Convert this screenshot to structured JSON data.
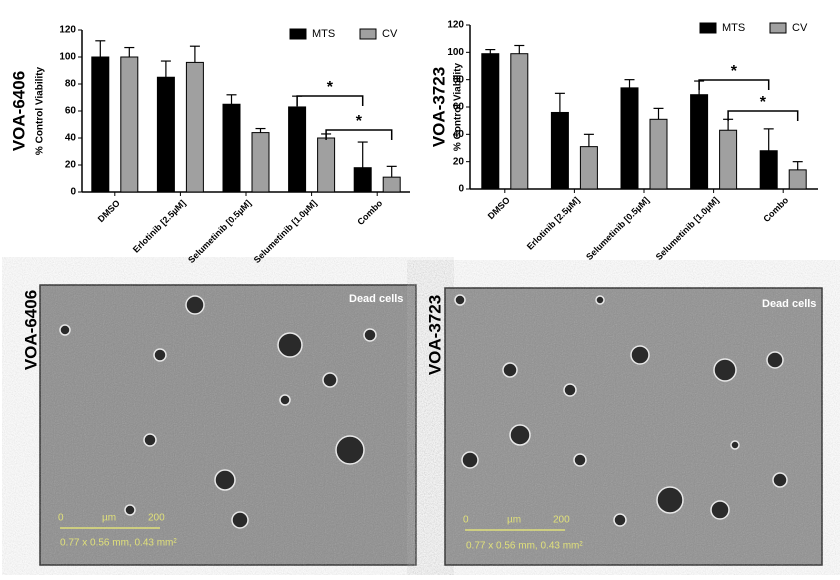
{
  "chart_data": [
    {
      "type": "bar",
      "title": "VOA-6406",
      "y_label": "% Control Viability",
      "categories": [
        "DMSO",
        "Erlotinib [2.5µM]",
        "Selumetinib [0.5µM]",
        "Selumetinib [1.0µM]",
        "Combo"
      ],
      "series": [
        {
          "name": "MTS",
          "color": "#000000",
          "values": [
            100,
            85,
            65,
            63,
            18
          ],
          "errors": [
            12,
            12,
            7,
            8,
            19
          ]
        },
        {
          "name": "CV",
          "color": "#a0a0a0",
          "values": [
            100,
            96,
            44,
            40,
            11
          ],
          "errors": [
            7,
            12,
            3,
            3,
            8
          ]
        }
      ],
      "ylim": [
        0,
        120
      ],
      "yticks": [
        0,
        20,
        40,
        60,
        80,
        100,
        120
      ],
      "legend": "upper right",
      "annotations": [
        "*",
        "*"
      ]
    },
    {
      "type": "bar",
      "title": "VOA-3723",
      "y_label": "% Control Viability",
      "categories": [
        "DMSO",
        "Erlotinib [2.5µM]",
        "Selumetinib [0.5µM]",
        "Selumetinib [1.0µM]",
        "Combo"
      ],
      "series": [
        {
          "name": "MTS",
          "color": "#000000",
          "values": [
            99,
            56,
            74,
            69,
            28
          ],
          "errors": [
            3,
            14,
            6,
            10,
            16
          ]
        },
        {
          "name": "CV",
          "color": "#a0a0a0",
          "values": [
            99,
            31,
            51,
            43,
            14
          ],
          "errors": [
            6,
            9,
            8,
            8,
            6
          ]
        }
      ],
      "ylim": [
        0,
        120
      ],
      "yticks": [
        0,
        20,
        40,
        60,
        80,
        100,
        120
      ],
      "legend": "upper right",
      "annotations": [
        "*",
        "*"
      ]
    }
  ],
  "images": [
    {
      "label": "VOA-6406",
      "annotation": "Dead cells",
      "scale_start": "0",
      "scale_unit": "µm",
      "scale_end": "200",
      "field": "0.77 x 0.56 mm, 0.43 mm²"
    },
    {
      "label": "VOA-3723",
      "annotation": "Dead cells",
      "scale_start": "0",
      "scale_unit": "µm",
      "scale_end": "200",
      "field": "0.77 x 0.56 mm, 0.43 mm²"
    }
  ]
}
